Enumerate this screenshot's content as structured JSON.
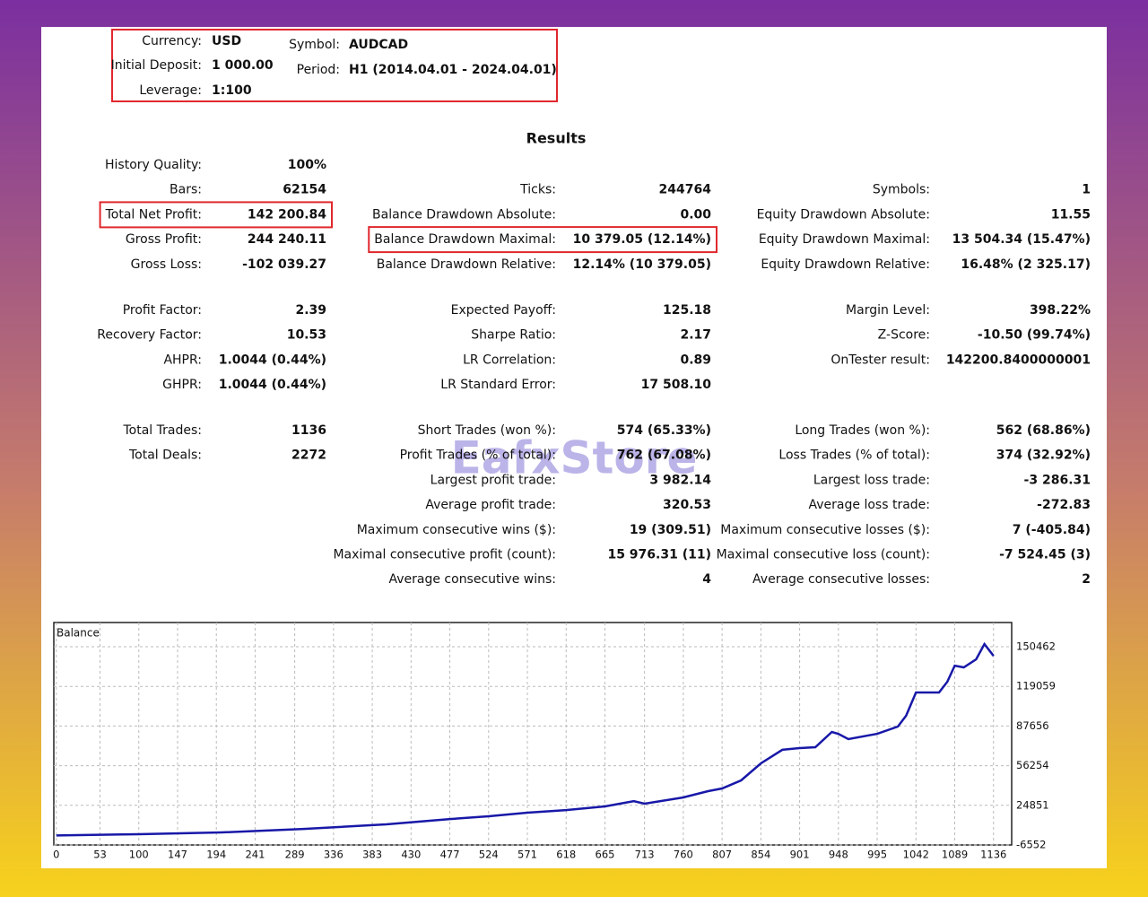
{
  "header": {
    "fields": [
      {
        "label": "Currency:",
        "value": "USD"
      },
      {
        "label": "Initial Deposit:",
        "value": "1 000.00"
      },
      {
        "label": "Leverage:",
        "value": "1:100"
      },
      {
        "label": "Symbol:",
        "value": "AUDCAD"
      },
      {
        "label": "Period:",
        "value": "H1 (2014.04.01 - 2024.04.01)"
      }
    ]
  },
  "results": {
    "title": "Results",
    "blocks": [
      {
        "rows": [
          [
            {
              "label": "History Quality:",
              "value": "100%"
            },
            null,
            null
          ],
          [
            {
              "label": "Bars:",
              "value": "62154"
            },
            {
              "label": "Ticks:",
              "value": "244764"
            },
            {
              "label": "Symbols:",
              "value": "1"
            }
          ],
          [
            {
              "label": "Total Net Profit:",
              "value": "142 200.84",
              "highlight": true
            },
            {
              "label": "Balance Drawdown Absolute:",
              "value": "0.00"
            },
            {
              "label": "Equity Drawdown Absolute:",
              "value": "11.55"
            }
          ],
          [
            {
              "label": "Gross Profit:",
              "value": "244 240.11"
            },
            {
              "label": "Balance Drawdown Maximal:",
              "value": "10 379.05 (12.14%)",
              "highlight": true
            },
            {
              "label": "Equity Drawdown Maximal:",
              "value": "13 504.34 (15.47%)"
            }
          ],
          [
            {
              "label": "Gross Loss:",
              "value": "-102 039.27"
            },
            {
              "label": "Balance Drawdown Relative:",
              "value": "12.14% (10 379.05)"
            },
            {
              "label": "Equity Drawdown Relative:",
              "value": "16.48% (2 325.17)"
            }
          ]
        ]
      },
      {
        "rows": [
          [
            {
              "label": "Profit Factor:",
              "value": "2.39"
            },
            {
              "label": "Expected Payoff:",
              "value": "125.18"
            },
            {
              "label": "Margin Level:",
              "value": "398.22%"
            }
          ],
          [
            {
              "label": "Recovery Factor:",
              "value": "10.53"
            },
            {
              "label": "Sharpe Ratio:",
              "value": "2.17"
            },
            {
              "label": "Z-Score:",
              "value": "-10.50 (99.74%)"
            }
          ],
          [
            {
              "label": "AHPR:",
              "value": "1.0044 (0.44%)"
            },
            {
              "label": "LR Correlation:",
              "value": "0.89"
            },
            {
              "label": "OnTester result:",
              "value": "142200.8400000001"
            }
          ],
          [
            {
              "label": "GHPR:",
              "value": "1.0044 (0.44%)"
            },
            {
              "label": "LR Standard Error:",
              "value": "17 508.10"
            },
            null
          ]
        ]
      },
      {
        "rows": [
          [
            {
              "label": "Total Trades:",
              "value": "1136"
            },
            {
              "label": "Short Trades (won %):",
              "value": "574 (65.33%)"
            },
            {
              "label": "Long Trades (won %):",
              "value": "562 (68.86%)"
            }
          ],
          [
            {
              "label": "Total Deals:",
              "value": "2272"
            },
            {
              "label": "Profit Trades (% of total):",
              "value": "762 (67.08%)"
            },
            {
              "label": "Loss Trades (% of total):",
              "value": "374 (32.92%)"
            }
          ],
          [
            null,
            {
              "label": "Largest profit trade:",
              "value": "3 982.14"
            },
            {
              "label": "Largest loss trade:",
              "value": "-3 286.31"
            }
          ],
          [
            null,
            {
              "label": "Average profit trade:",
              "value": "320.53"
            },
            {
              "label": "Average loss trade:",
              "value": "-272.83"
            }
          ],
          [
            null,
            {
              "label": "Maximum consecutive wins ($):",
              "value": "19 (309.51)"
            },
            {
              "label": "Maximum consecutive losses ($):",
              "value": "7 (-405.84)"
            }
          ],
          [
            null,
            {
              "label": "Maximal consecutive profit (count):",
              "value": "15 976.31 (11)"
            },
            {
              "label": "Maximal consecutive loss (count):",
              "value": "-7 524.45 (3)"
            }
          ],
          [
            null,
            {
              "label": "Average consecutive wins:",
              "value": "4"
            },
            {
              "label": "Average consecutive losses:",
              "value": "2"
            }
          ]
        ]
      }
    ]
  },
  "watermark": "EafxStore",
  "chart_data": {
    "type": "line",
    "x": [
      0,
      100,
      200,
      300,
      400,
      477,
      524,
      571,
      618,
      665,
      700,
      713,
      760,
      790,
      807,
      830,
      854,
      880,
      901,
      920,
      940,
      948,
      960,
      995,
      1020,
      1030,
      1042,
      1070,
      1080,
      1089,
      1100,
      1115,
      1125,
      1136
    ],
    "series": [
      {
        "name": "Balance",
        "color": "#1818a8",
        "values": [
          1000,
          2000,
          3400,
          6200,
          9800,
          14000,
          16200,
          19000,
          21100,
          24000,
          28200,
          26100,
          31100,
          36100,
          38200,
          44600,
          58100,
          68800,
          70200,
          70900,
          83000,
          81400,
          77300,
          81500,
          87200,
          95800,
          114200,
          114200,
          122700,
          135500,
          134100,
          140500,
          152600,
          143201
        ]
      }
    ],
    "xlim": [
      -3,
      1158
    ],
    "ylim": [
      -6552,
      169645
    ],
    "xticks": [
      0,
      53,
      100,
      147,
      194,
      241,
      289,
      336,
      383,
      430,
      477,
      524,
      571,
      618,
      665,
      713,
      760,
      807,
      854,
      901,
      948,
      995,
      1042,
      1089,
      1136
    ],
    "yticks": [
      150462,
      119059,
      87656,
      56254,
      24851,
      -6552
    ],
    "grid": true
  }
}
